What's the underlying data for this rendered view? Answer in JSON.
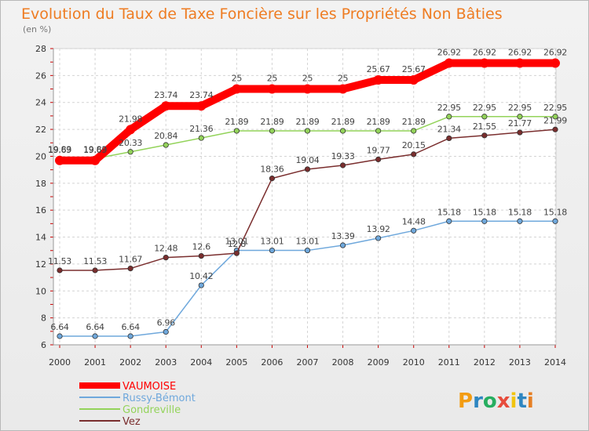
{
  "chart_data": {
    "type": "line",
    "title": "Evolution du Taux de Taxe Foncière sur les Propriétés Non Bâties",
    "unit_label": "(en %)",
    "x": [
      "2000",
      "2001",
      "2002",
      "2003",
      "2004",
      "2005",
      "2006",
      "2007",
      "2008",
      "2009",
      "2010",
      "2011",
      "2012",
      "2013",
      "2014"
    ],
    "ylim": [
      6,
      28
    ],
    "yticks": [
      6,
      8,
      10,
      12,
      14,
      16,
      18,
      20,
      22,
      24,
      26,
      28
    ],
    "grid": true,
    "legend_position": "bottom-left",
    "series": [
      {
        "name": "VAUMOISE",
        "color": "#ff0000",
        "values": [
          19.69,
          19.69,
          21.98,
          23.74,
          23.74,
          25,
          25,
          25,
          25,
          25.67,
          25.67,
          26.92,
          26.92,
          26.92,
          26.92
        ],
        "labels": [
          "19.69",
          "19.69",
          "21.98",
          "23.74",
          "23.74",
          "25",
          "25",
          "25",
          "25",
          "25.67",
          "25.67",
          "26.92",
          "26.92",
          "26.92",
          "26.92"
        ]
      },
      {
        "name": "Russy-Bémont",
        "color": "#6fa8dc",
        "values": [
          6.64,
          6.64,
          6.64,
          6.96,
          10.42,
          13.01,
          13.01,
          13.01,
          13.39,
          13.92,
          14.48,
          15.18,
          15.18,
          15.18,
          15.18
        ],
        "labels": [
          "6.64",
          "6.64",
          "6.64",
          "6.96",
          "10.42",
          "13.01",
          "13.01",
          "13.01",
          "13.39",
          "13.92",
          "14.48",
          "15.18",
          "15.18",
          "15.18",
          "15.18"
        ]
      },
      {
        "name": "Gondreville",
        "color": "#93d35a",
        "values": [
          19.83,
          19.83,
          20.33,
          20.84,
          21.36,
          21.89,
          21.89,
          21.89,
          21.89,
          21.89,
          21.89,
          22.95,
          22.95,
          22.95,
          22.95
        ],
        "labels": [
          "19.83",
          "19.83",
          "20.33",
          "20.84",
          "21.36",
          "21.89",
          "21.89",
          "21.89",
          "21.89",
          "21.89",
          "21.89",
          "22.95",
          "22.95",
          "22.95",
          "22.95"
        ]
      },
      {
        "name": "Vez",
        "color": "#7a2e2e",
        "values": [
          11.53,
          11.53,
          11.67,
          12.48,
          12.6,
          12.8,
          18.36,
          19.04,
          19.33,
          19.77,
          20.15,
          21.34,
          21.55,
          21.77,
          21.99
        ],
        "labels": [
          "11.53",
          "11.53",
          "11.67",
          "12.48",
          "12.6",
          "12.8",
          "18.36",
          "19.04",
          "19.33",
          "19.77",
          "20.15",
          "21.34",
          "21.55",
          "21.77",
          "21.99"
        ]
      }
    ]
  },
  "logo": {
    "letters": [
      "P",
      "r",
      "o",
      "x",
      "i",
      "t",
      "i"
    ],
    "colors": [
      "#f39c12",
      "#2e86c1",
      "#27ae60",
      "#e74c3c",
      "#f1c40f",
      "#2e86c1",
      "#e67e22"
    ]
  }
}
